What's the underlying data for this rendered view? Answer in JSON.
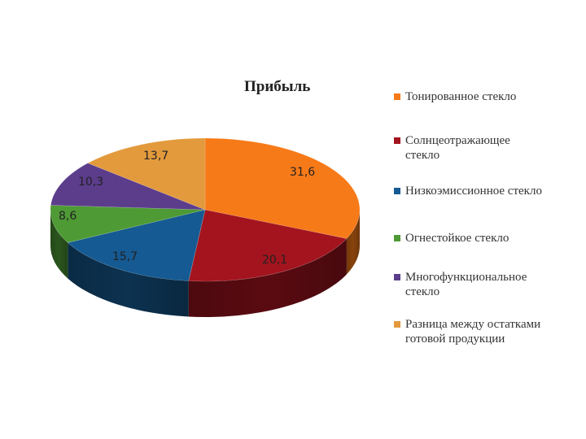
{
  "chart_data": {
    "type": "pie",
    "title": "Прибыль",
    "legend_position": "right",
    "slices": [
      {
        "label": "Тонированное стекло",
        "value": 31.6,
        "value_label": "31,6",
        "color": "#F77A18"
      },
      {
        "label": "Солнцеотражающее стекло",
        "value": 20.1,
        "value_label": "20,1",
        "color": "#A3141E"
      },
      {
        "label": "Низкоэмиссионное стекло",
        "value": 15.7,
        "value_label": "15,7",
        "color": "#155A92"
      },
      {
        "label": "Огнестойкое стекло",
        "value": 8.6,
        "value_label": "8,6",
        "color": "#4E9A35"
      },
      {
        "label": "Многофункциональное стекло",
        "value": 10.3,
        "value_label": "10,3",
        "color": "#5C3D8C"
      },
      {
        "label": "Разница между остатками готовой продукции",
        "value": 13.7,
        "value_label": "13,7",
        "color": "#E39A3D"
      }
    ]
  }
}
